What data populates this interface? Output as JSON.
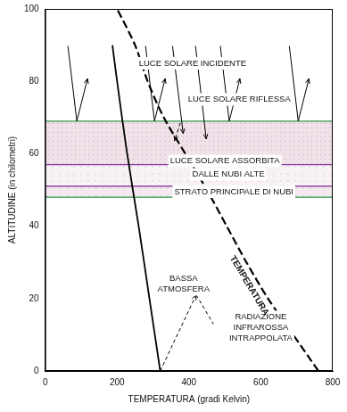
{
  "chart_data": {
    "type": "line",
    "xlabel": "TEMPERATURA (gradi Kelvin)",
    "ylabel": "ALTITUDINE (in chilometri)",
    "xlim": [
      0,
      800
    ],
    "xticks": [
      0,
      200,
      400,
      600,
      800
    ],
    "ylim": [
      0,
      100
    ],
    "yticks": [
      0,
      20,
      40,
      60,
      80,
      100
    ],
    "grid": false,
    "series": [
      {
        "x": [
          320,
          290,
          260,
          228,
          200,
          187
        ],
        "values": [
          0,
          20,
          40,
          60,
          80,
          90
        ],
        "color": "#000000",
        "line_style": "solid"
      },
      {
        "x": [
          760,
          690,
          620,
          560,
          505,
          450,
          390,
          330,
          285,
          250,
          200
        ],
        "values": [
          0,
          10,
          20,
          30,
          40,
          50,
          60,
          70,
          80,
          90,
          100
        ],
        "color": "#000000",
        "line_style": "dashed",
        "label": "TEMPERATURA"
      }
    ],
    "bands": [
      {
        "from": 57,
        "to": 69,
        "color": "#f1e2ea"
      },
      {
        "from": 51,
        "to": 57,
        "color": "#f8f1f5"
      },
      {
        "from": 48,
        "to": 51,
        "color": "#f4eaf0"
      }
    ],
    "annotations": [
      {
        "text": [
          "LUCE SOLARE INCIDENTE"
        ],
        "x": 410,
        "y": 85
      },
      {
        "text": [
          "LUCE SOLARE RIFLESSA"
        ],
        "x": 540,
        "y": 75
      },
      {
        "text": [
          "LUCE SOLARE ASSORBITA"
        ],
        "x": 500,
        "y": 58
      },
      {
        "text": [
          "DALLE NUBI ALTE"
        ],
        "x": 510,
        "y": 54.3
      },
      {
        "text": [
          "STRATO PRINCIPALE DI NUBI"
        ],
        "x": 525,
        "y": 49.5
      },
      {
        "text": [
          "BASSA",
          "ATMOSFERA"
        ],
        "x": 385,
        "y": 24
      },
      {
        "text": [
          "RADIAZIONE",
          "INFRAROSSA",
          "INTRAPPOLATA"
        ],
        "x": 600,
        "y": 12
      }
    ]
  }
}
